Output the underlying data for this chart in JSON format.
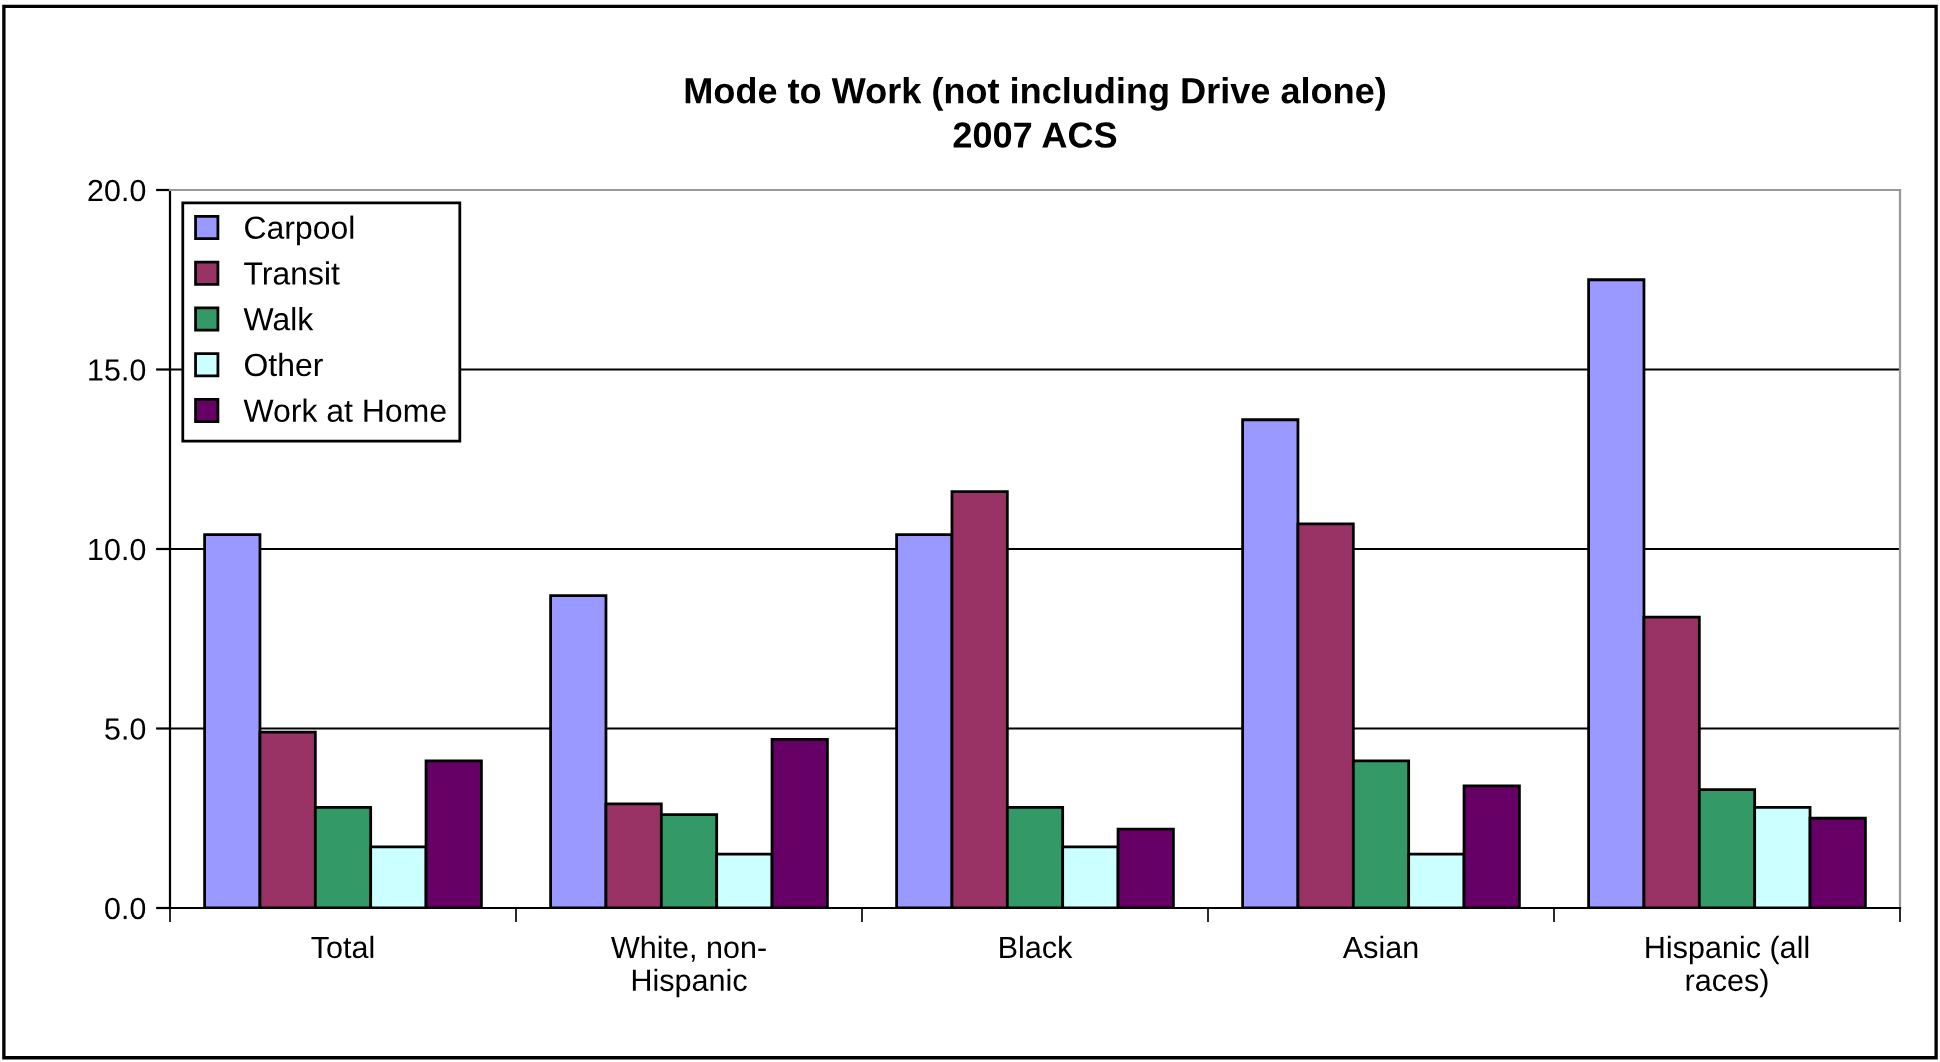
{
  "chart_data": {
    "type": "bar",
    "title": "Mode to Work (not including Drive alone)\n2007 ACS",
    "categories": [
      "Total",
      "White, non-\nHispanic",
      "Black",
      "Asian",
      "Hispanic (all\nraces)"
    ],
    "series": [
      {
        "name": "Carpool",
        "color": "#9999ff",
        "values": [
          10.4,
          8.7,
          10.4,
          13.6,
          17.5
        ]
      },
      {
        "name": "Transit",
        "color": "#993366",
        "values": [
          4.9,
          2.9,
          11.6,
          10.7,
          8.1
        ]
      },
      {
        "name": "Walk",
        "color": "#339966",
        "values": [
          2.8,
          2.6,
          2.8,
          4.1,
          3.3
        ]
      },
      {
        "name": "Other",
        "color": "#ccffff",
        "values": [
          1.7,
          1.5,
          1.7,
          1.5,
          2.8
        ]
      },
      {
        "name": "Work at Home",
        "color": "#660066",
        "values": [
          4.1,
          4.7,
          2.2,
          3.4,
          2.5
        ]
      }
    ],
    "ylim": [
      0,
      20
    ],
    "yticks": [
      {
        "value": 0,
        "label": "0.0"
      },
      {
        "value": 5,
        "label": "5.0"
      },
      {
        "value": 10,
        "label": "10.0"
      },
      {
        "value": 15,
        "label": "15.0"
      },
      {
        "value": 20,
        "label": "20.0"
      }
    ],
    "grid": "y",
    "legend": "top left"
  }
}
